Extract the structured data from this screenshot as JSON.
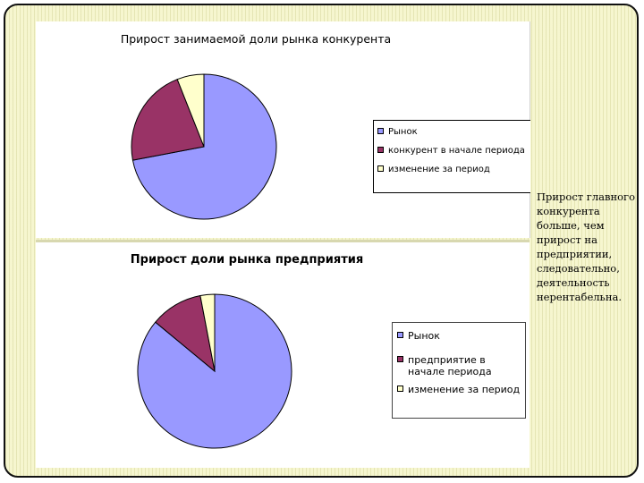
{
  "side_text": "Прирост главного конкурента больше, чем прирост на предприятии, следовательно, деятельность нерентабельна.",
  "chart_data": [
    {
      "type": "pie",
      "title": "Прирост занимаемой доли рынка конкурента",
      "legend_position": "right",
      "slices": [
        {
          "label": "Рынок",
          "value": 72,
          "color": "#9999ff"
        },
        {
          "label": "конкурент в начале периода",
          "value": 22,
          "color": "#993366"
        },
        {
          "label": "изменение за период",
          "value": 6,
          "color": "#ffffcc"
        }
      ]
    },
    {
      "type": "pie",
      "title": "Прирост доли рынка предприятия",
      "legend_position": "right",
      "slices": [
        {
          "label": "Рынок",
          "value": 86,
          "color": "#9999ff"
        },
        {
          "label": "предприятие в начале периода",
          "value": 11,
          "color": "#993366"
        },
        {
          "label": "изменение за период",
          "value": 3,
          "color": "#ffffcc"
        }
      ]
    }
  ]
}
